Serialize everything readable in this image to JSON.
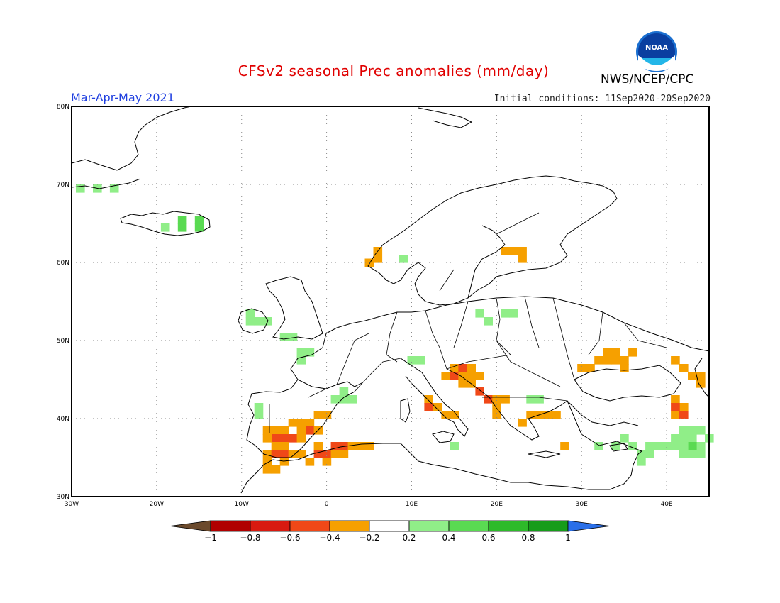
{
  "title": "CFSv2 seasonal Prec anomalies (mm/day)",
  "period": "Mar-Apr-May 2021",
  "initial_conditions": "Initial conditions: 11Sep2020-20Sep2020",
  "agency": "NWS/NCEP/CPC",
  "logo_text": "NOAA",
  "map": {
    "lon_range": [
      -30,
      45
    ],
    "lat_range": [
      30,
      80
    ],
    "lon_ticks": [
      "30W",
      "20W",
      "10W",
      "0",
      "10E",
      "20E",
      "30E",
      "40E"
    ],
    "lat_ticks": [
      "30N",
      "40N",
      "50N",
      "60N",
      "70N",
      "80N"
    ],
    "grid": "dotted"
  },
  "colorbar": {
    "labels": [
      "-1",
      "-0.8",
      "-0.6",
      "-0.4",
      "-0.2",
      "0.2",
      "0.4",
      "0.6",
      "0.8",
      "1"
    ],
    "colors": [
      "#6b4a2c",
      "#b00000",
      "#d81a10",
      "#f04818",
      "#f6a000",
      "#ffffff",
      "#90ee88",
      "#5ada52",
      "#2eba2a",
      "#169c1a",
      "#2a6fe8"
    ]
  },
  "anomaly_cells": [
    {
      "lon": -29,
      "lat": 69.5,
      "v": 0.3
    },
    {
      "lon": -27,
      "lat": 69.5,
      "v": 0.3
    },
    {
      "lon": -25,
      "lat": 69.5,
      "v": 0.3
    },
    {
      "lon": -19,
      "lat": 64.5,
      "v": 0.3
    },
    {
      "lon": -17,
      "lat": 64.5,
      "v": 0.45
    },
    {
      "lon": -15,
      "lat": 64.5,
      "v": 0.45
    },
    {
      "lon": -15,
      "lat": 65.5,
      "v": 0.45
    },
    {
      "lon": -17,
      "lat": 65.5,
      "v": 0.45
    },
    {
      "lon": 6,
      "lat": 61.5,
      "v": -0.3
    },
    {
      "lon": 6,
      "lat": 60.5,
      "v": -0.3
    },
    {
      "lon": 5,
      "lat": 60,
      "v": -0.3
    },
    {
      "lon": 9,
      "lat": 60.5,
      "v": 0.3
    },
    {
      "lon": 21,
      "lat": 61.5,
      "v": -0.3
    },
    {
      "lon": 22,
      "lat": 61.5,
      "v": -0.3
    },
    {
      "lon": 23,
      "lat": 61.5,
      "v": -0.3
    },
    {
      "lon": 23,
      "lat": 60.5,
      "v": -0.3
    },
    {
      "lon": -9,
      "lat": 53.5,
      "v": 0.3
    },
    {
      "lon": -9,
      "lat": 52.5,
      "v": 0.3
    },
    {
      "lon": -8,
      "lat": 52.5,
      "v": 0.3
    },
    {
      "lon": -7,
      "lat": 52.5,
      "v": 0.3
    },
    {
      "lon": -5,
      "lat": 50.5,
      "v": 0.3
    },
    {
      "lon": -4,
      "lat": 50.5,
      "v": 0.3
    },
    {
      "lon": -3,
      "lat": 48.5,
      "v": 0.3
    },
    {
      "lon": -2,
      "lat": 48.5,
      "v": 0.3
    },
    {
      "lon": -3,
      "lat": 47.5,
      "v": 0.3
    },
    {
      "lon": 2,
      "lat": 42.5,
      "v": 0.3
    },
    {
      "lon": 3,
      "lat": 42.5,
      "v": 0.3
    },
    {
      "lon": 1,
      "lat": 42.5,
      "v": 0.3
    },
    {
      "lon": 2,
      "lat": 43.5,
      "v": 0.3
    },
    {
      "lon": -8,
      "lat": 41.5,
      "v": 0.3
    },
    {
      "lon": -8,
      "lat": 40.5,
      "v": 0.3
    },
    {
      "lon": 10,
      "lat": 47.5,
      "v": 0.3
    },
    {
      "lon": 11,
      "lat": 47.5,
      "v": 0.3
    },
    {
      "lon": 18,
      "lat": 53.5,
      "v": 0.3
    },
    {
      "lon": 19,
      "lat": 52.5,
      "v": 0.3
    },
    {
      "lon": 21,
      "lat": 53.5,
      "v": 0.3
    },
    {
      "lon": 22,
      "lat": 53.5,
      "v": 0.3
    },
    {
      "lon": 24,
      "lat": 42.5,
      "v": 0.3
    },
    {
      "lon": 25,
      "lat": 42.5,
      "v": 0.3
    },
    {
      "lon": 15,
      "lat": 46.5,
      "v": -0.3
    },
    {
      "lon": 16,
      "lat": 46.5,
      "v": -0.5
    },
    {
      "lon": 17,
      "lat": 46.5,
      "v": -0.3
    },
    {
      "lon": 14,
      "lat": 45.5,
      "v": -0.3
    },
    {
      "lon": 15,
      "lat": 45.5,
      "v": -0.5
    },
    {
      "lon": 16,
      "lat": 45.5,
      "v": -0.3
    },
    {
      "lon": 17,
      "lat": 45.5,
      "v": -0.3
    },
    {
      "lon": 18,
      "lat": 45.5,
      "v": -0.3
    },
    {
      "lon": 16,
      "lat": 44.5,
      "v": -0.3
    },
    {
      "lon": 17,
      "lat": 44.5,
      "v": -0.3
    },
    {
      "lon": 18,
      "lat": 43.5,
      "v": -0.5
    },
    {
      "lon": 19,
      "lat": 42.5,
      "v": -0.5
    },
    {
      "lon": 20,
      "lat": 42.5,
      "v": -0.3
    },
    {
      "lon": 20,
      "lat": 41.5,
      "v": -0.3
    },
    {
      "lon": 21,
      "lat": 42.5,
      "v": -0.3
    },
    {
      "lon": 20,
      "lat": 40.5,
      "v": -0.3
    },
    {
      "lon": 12,
      "lat": 42.5,
      "v": -0.3
    },
    {
      "lon": 12,
      "lat": 41.5,
      "v": -0.5
    },
    {
      "lon": 13,
      "lat": 41.5,
      "v": -0.3
    },
    {
      "lon": 14,
      "lat": 40.5,
      "v": -0.3
    },
    {
      "lon": 15,
      "lat": 40.5,
      "v": -0.3
    },
    {
      "lon": 24,
      "lat": 40.5,
      "v": -0.3
    },
    {
      "lon": 25,
      "lat": 40.5,
      "v": -0.3
    },
    {
      "lon": 26,
      "lat": 40.5,
      "v": -0.3
    },
    {
      "lon": 27,
      "lat": 40.5,
      "v": -0.3
    },
    {
      "lon": 23,
      "lat": 39.5,
      "v": -0.3
    },
    {
      "lon": 28,
      "lat": 36.5,
      "v": -0.3
    },
    {
      "lon": 30,
      "lat": 46.5,
      "v": -0.3
    },
    {
      "lon": 31,
      "lat": 46.5,
      "v": -0.3
    },
    {
      "lon": 32,
      "lat": 47.5,
      "v": -0.3
    },
    {
      "lon": 33,
      "lat": 47.5,
      "v": -0.3
    },
    {
      "lon": 34,
      "lat": 47.5,
      "v": -0.3
    },
    {
      "lon": 35,
      "lat": 47.5,
      "v": -0.3
    },
    {
      "lon": 36,
      "lat": 48.5,
      "v": -0.3
    },
    {
      "lon": 33,
      "lat": 48.5,
      "v": -0.3
    },
    {
      "lon": 34,
      "lat": 48.5,
      "v": -0.3
    },
    {
      "lon": 35,
      "lat": 46.5,
      "v": -0.3
    },
    {
      "lon": 41,
      "lat": 47.5,
      "v": -0.3
    },
    {
      "lon": 42,
      "lat": 46.5,
      "v": -0.3
    },
    {
      "lon": 43,
      "lat": 45.5,
      "v": -0.3
    },
    {
      "lon": 44,
      "lat": 45.5,
      "v": -0.3
    },
    {
      "lon": 44,
      "lat": 44.5,
      "v": -0.3
    },
    {
      "lon": 41,
      "lat": 42.5,
      "v": -0.3
    },
    {
      "lon": 42,
      "lat": 41.5,
      "v": -0.3
    },
    {
      "lon": 41,
      "lat": 40.5,
      "v": -0.3
    },
    {
      "lon": 41,
      "lat": 41.5,
      "v": -0.5
    },
    {
      "lon": 42,
      "lat": 40.5,
      "v": -0.5
    },
    {
      "lon": -7,
      "lat": 38.5,
      "v": -0.3
    },
    {
      "lon": -6,
      "lat": 38.5,
      "v": -0.3
    },
    {
      "lon": -5,
      "lat": 38.5,
      "v": -0.3
    },
    {
      "lon": -4,
      "lat": 39.5,
      "v": -0.3
    },
    {
      "lon": -3,
      "lat": 39.5,
      "v": -0.3
    },
    {
      "lon": -2,
      "lat": 39.5,
      "v": -0.3
    },
    {
      "lon": -1,
      "lat": 40.5,
      "v": -0.3
    },
    {
      "lon": 0,
      "lat": 40.5,
      "v": -0.3
    },
    {
      "lon": -2,
      "lat": 38.5,
      "v": -0.5
    },
    {
      "lon": -1,
      "lat": 38.5,
      "v": -0.3
    },
    {
      "lon": -3,
      "lat": 38.5,
      "v": -0.3
    },
    {
      "lon": -6,
      "lat": 37.5,
      "v": -0.5
    },
    {
      "lon": -5,
      "lat": 37.5,
      "v": -0.5
    },
    {
      "lon": -4,
      "lat": 37.5,
      "v": -0.5
    },
    {
      "lon": -3,
      "lat": 37.5,
      "v": -0.3
    },
    {
      "lon": -7,
      "lat": 37.5,
      "v": -0.3
    },
    {
      "lon": -6,
      "lat": 36.5,
      "v": -0.3
    },
    {
      "lon": -5,
      "lat": 36.5,
      "v": -0.3
    },
    {
      "lon": -7,
      "lat": 35.5,
      "v": -0.3
    },
    {
      "lon": -6,
      "lat": 35.5,
      "v": -0.5
    },
    {
      "lon": -5,
      "lat": 35.5,
      "v": -0.5
    },
    {
      "lon": -4,
      "lat": 35.5,
      "v": -0.3
    },
    {
      "lon": -3,
      "lat": 35.5,
      "v": -0.3
    },
    {
      "lon": -7,
      "lat": 34.5,
      "v": -0.3
    },
    {
      "lon": -5,
      "lat": 34.5,
      "v": -0.3
    },
    {
      "lon": -7,
      "lat": 33.5,
      "v": -0.3
    },
    {
      "lon": -6,
      "lat": 33.5,
      "v": -0.3
    },
    {
      "lon": -2,
      "lat": 34.5,
      "v": -0.3
    },
    {
      "lon": -1,
      "lat": 35.5,
      "v": -0.5
    },
    {
      "lon": 0,
      "lat": 35.5,
      "v": -0.5
    },
    {
      "lon": 1,
      "lat": 36.5,
      "v": -0.5
    },
    {
      "lon": 2,
      "lat": 36.5,
      "v": -0.5
    },
    {
      "lon": 3,
      "lat": 36.5,
      "v": -0.3
    },
    {
      "lon": 4,
      "lat": 36.5,
      "v": -0.3
    },
    {
      "lon": 5,
      "lat": 36.5,
      "v": -0.3
    },
    {
      "lon": 0,
      "lat": 34.5,
      "v": -0.3
    },
    {
      "lon": 1,
      "lat": 35.5,
      "v": -0.3
    },
    {
      "lon": 2,
      "lat": 35.5,
      "v": -0.3
    },
    {
      "lon": -1,
      "lat": 36.5,
      "v": -0.3
    },
    {
      "lon": 35,
      "lat": 37.5,
      "v": 0.3
    },
    {
      "lon": 34,
      "lat": 36.5,
      "v": 0.3
    },
    {
      "lon": 36,
      "lat": 36.5,
      "v": 0.3
    },
    {
      "lon": 38,
      "lat": 36.5,
      "v": 0.3
    },
    {
      "lon": 39,
      "lat": 36.5,
      "v": 0.3
    },
    {
      "lon": 40,
      "lat": 36.5,
      "v": 0.3
    },
    {
      "lon": 41,
      "lat": 37.5,
      "v": 0.3
    },
    {
      "lon": 42,
      "lat": 37.5,
      "v": 0.3
    },
    {
      "lon": 43,
      "lat": 37.5,
      "v": 0.3
    },
    {
      "lon": 44,
      "lat": 36.5,
      "v": 0.3
    },
    {
      "lon": 43,
      "lat": 36.5,
      "v": 0.45
    },
    {
      "lon": 42,
      "lat": 36.5,
      "v": 0.3
    },
    {
      "lon": 41,
      "lat": 36.5,
      "v": 0.3
    },
    {
      "lon": 37,
      "lat": 35.5,
      "v": 0.3
    },
    {
      "lon": 38,
      "lat": 35.5,
      "v": 0.3
    },
    {
      "lon": 37,
      "lat": 34.5,
      "v": 0.3
    },
    {
      "lon": 42,
      "lat": 35.5,
      "v": 0.3
    },
    {
      "lon": 43,
      "lat": 35.5,
      "v": 0.3
    },
    {
      "lon": 44,
      "lat": 35.5,
      "v": 0.3
    },
    {
      "lon": 42,
      "lat": 38.5,
      "v": 0.3
    },
    {
      "lon": 43,
      "lat": 38.5,
      "v": 0.3
    },
    {
      "lon": 44,
      "lat": 38.5,
      "v": 0.3
    },
    {
      "lon": 45,
      "lat": 37.5,
      "v": 0.3
    },
    {
      "lon": 32,
      "lat": 36.5,
      "v": 0.3
    },
    {
      "lon": 15,
      "lat": 36.5,
      "v": 0.3
    }
  ]
}
